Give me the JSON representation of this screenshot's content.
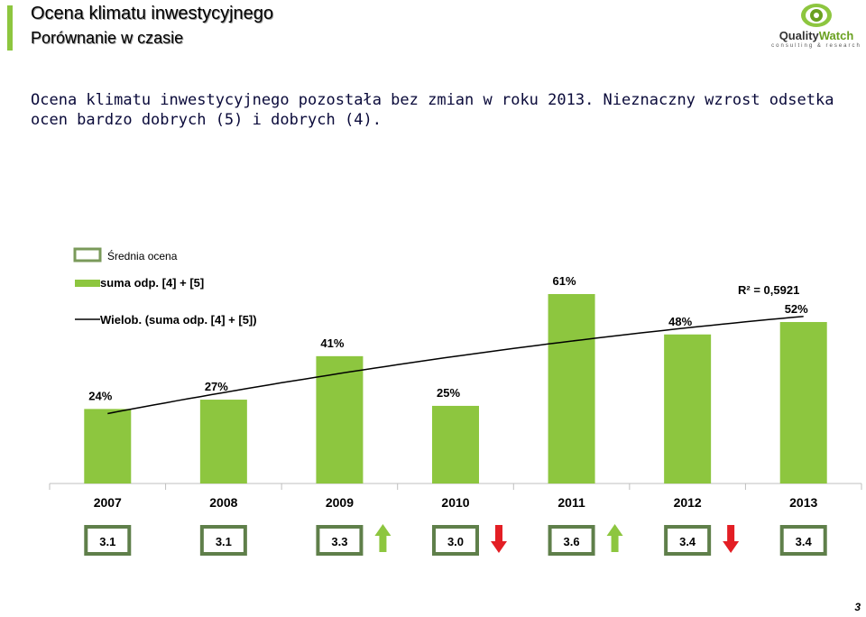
{
  "header": {
    "title": "Ocena klimatu inwestycyjnego",
    "subtitle": "Porównanie w czasie",
    "headline": "Ocena klimatu inwestycyjnego pozostała bez zmian w roku 2013. Nieznaczny wzrost odsetka ocen bardzo dobrych (5) i dobrych (4).",
    "page_number": "3"
  },
  "logo": {
    "word_part1": "Quality",
    "word_part2": "Watch",
    "tagline": "consulting & research"
  },
  "colors": {
    "bar": "#8dc63f",
    "accent": "#8dc63f",
    "arrow_up": "#8dc63f",
    "arrow_down": "#e31e24",
    "trend": "#000000"
  },
  "chart_data": {
    "type": "bar",
    "categories": [
      "2007",
      "2008",
      "2009",
      "2010",
      "2011",
      "2012",
      "2013"
    ],
    "series": [
      {
        "name": "suma odp. [4] + [5]",
        "values": [
          24,
          27,
          41,
          25,
          61,
          48,
          52
        ]
      }
    ],
    "data_labels": [
      "24%",
      "27%",
      "41%",
      "25%",
      "61%",
      "48%",
      "52%"
    ],
    "trendline": {
      "name": "Wielob. (suma odp. [4] + [5])",
      "type": "polynomial",
      "r2_label": "R² = 0,5921"
    },
    "average_rating": {
      "name": "Średnia ocena",
      "values": [
        "3.1",
        "3.1",
        "3.3",
        "3.0",
        "3.6",
        "3.4",
        "3.4"
      ],
      "change": [
        "none",
        "none",
        "up",
        "down",
        "up",
        "down",
        "none"
      ]
    },
    "legend": [
      "Średnia ocena",
      "suma odp. [4] + [5]",
      "Wielob. (suma odp. [4] + [5])"
    ],
    "legend_position": "top-left",
    "ylim": [
      0,
      70
    ],
    "grid": false
  }
}
